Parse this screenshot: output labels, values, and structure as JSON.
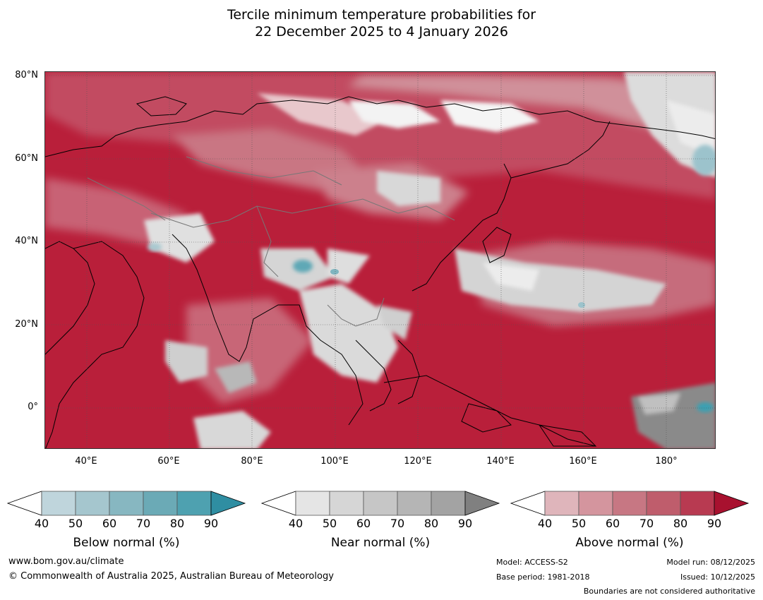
{
  "title_line1": "Tercile minimum temperature probabilities for",
  "title_line2": "22 December 2025 to 4 January 2026",
  "map": {
    "lon_range": [
      30,
      192
    ],
    "lat_range": [
      -10,
      81
    ],
    "lat_labels": [
      "80°N",
      "60°N",
      "40°N",
      "20°N",
      "0°"
    ],
    "lat_values": [
      80,
      60,
      40,
      20,
      0
    ],
    "lon_labels": [
      "40°E",
      "60°E",
      "80°E",
      "100°E",
      "120°E",
      "140°E",
      "160°E",
      "180°"
    ],
    "lon_values": [
      40,
      60,
      80,
      100,
      120,
      140,
      160,
      180
    ]
  },
  "colorbars": {
    "below": {
      "title": "Below normal (%)",
      "ticks": [
        "40",
        "50",
        "60",
        "70",
        "80",
        "90"
      ],
      "colors": [
        "#bfd5dc",
        "#a5c6ce",
        "#87b7c1",
        "#6baab6",
        "#4ea1b0",
        "#2f8ea2"
      ]
    },
    "near": {
      "title": "Near normal (%)",
      "ticks": [
        "40",
        "50",
        "60",
        "70",
        "80",
        "90"
      ],
      "colors": [
        "#e5e5e5",
        "#d6d6d6",
        "#c6c6c6",
        "#b5b5b5",
        "#a3a3a3",
        "#808080"
      ]
    },
    "above": {
      "title": "Above normal (%)",
      "ticks": [
        "40",
        "50",
        "60",
        "70",
        "80",
        "90"
      ],
      "colors": [
        "#dfb5bb",
        "#d4959e",
        "#c77783",
        "#bf5d6c",
        "#b83a51",
        "#a8112f"
      ]
    }
  },
  "footer": {
    "website": "www.bom.gov.au/climate",
    "copyright": "© Commonwealth of Australia 2025, Australian Bureau of Meteorology",
    "model": "Model: ACCESS-S2",
    "base_period": "Base period: 1981-2018",
    "model_run": "Model run: 08/12/2025",
    "issued": "Issued: 10/12/2025",
    "disclaimer": "Boundaries are not considered authoritative"
  }
}
